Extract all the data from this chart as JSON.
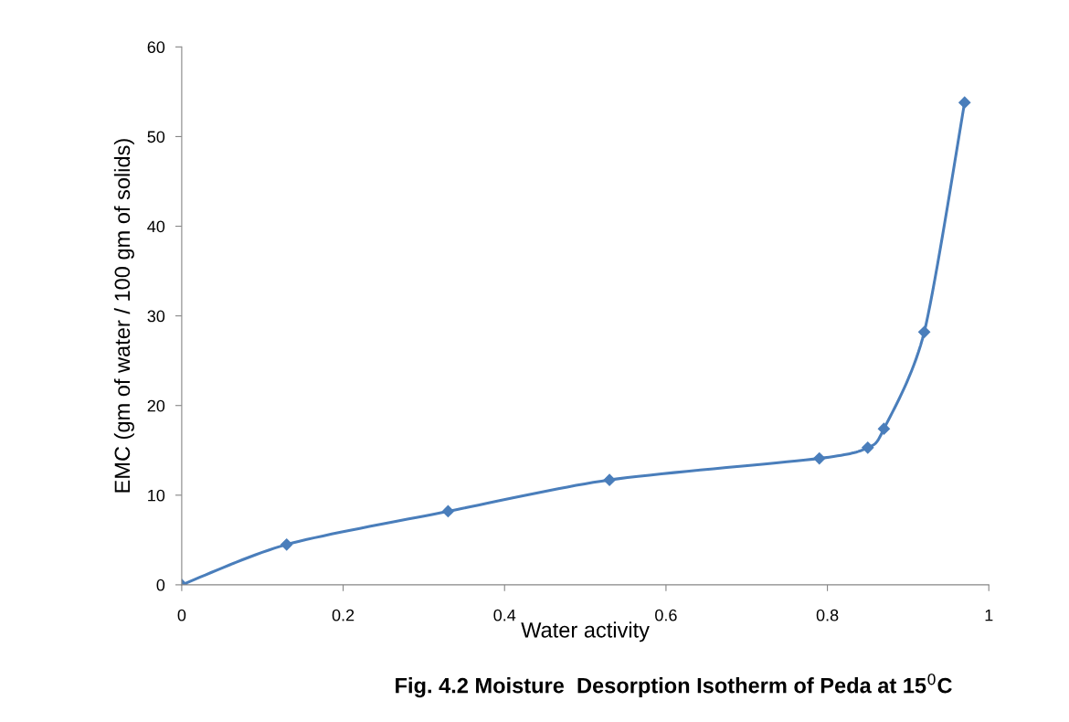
{
  "chart_data": {
    "type": "line",
    "title": "Fig. 4.2 Moisture  Desorption Isotherm of Peda at 15$^{0}$C",
    "xlabel": "Water activity",
    "ylabel": "EMC (gm of water / 100 gm of solids)",
    "x": [
      0,
      0.13,
      0.33,
      0.53,
      0.79,
      0.85,
      0.87,
      0.92,
      0.97
    ],
    "series": [
      {
        "color": "#4a7ebb",
        "values": [
          0,
          4.5,
          8.2,
          11.7,
          14.1,
          15.3,
          17.4,
          28.2,
          53.8
        ]
      }
    ],
    "xlim": [
      0,
      1
    ],
    "xticks": [
      0,
      0.2,
      0.4,
      0.6,
      0.8,
      1
    ],
    "ylim": [
      0,
      60
    ],
    "yticks": [
      0,
      10,
      20,
      30,
      40,
      50,
      60
    ],
    "marker": "diamond",
    "line_style": "solid",
    "grid": false,
    "legend": false
  }
}
